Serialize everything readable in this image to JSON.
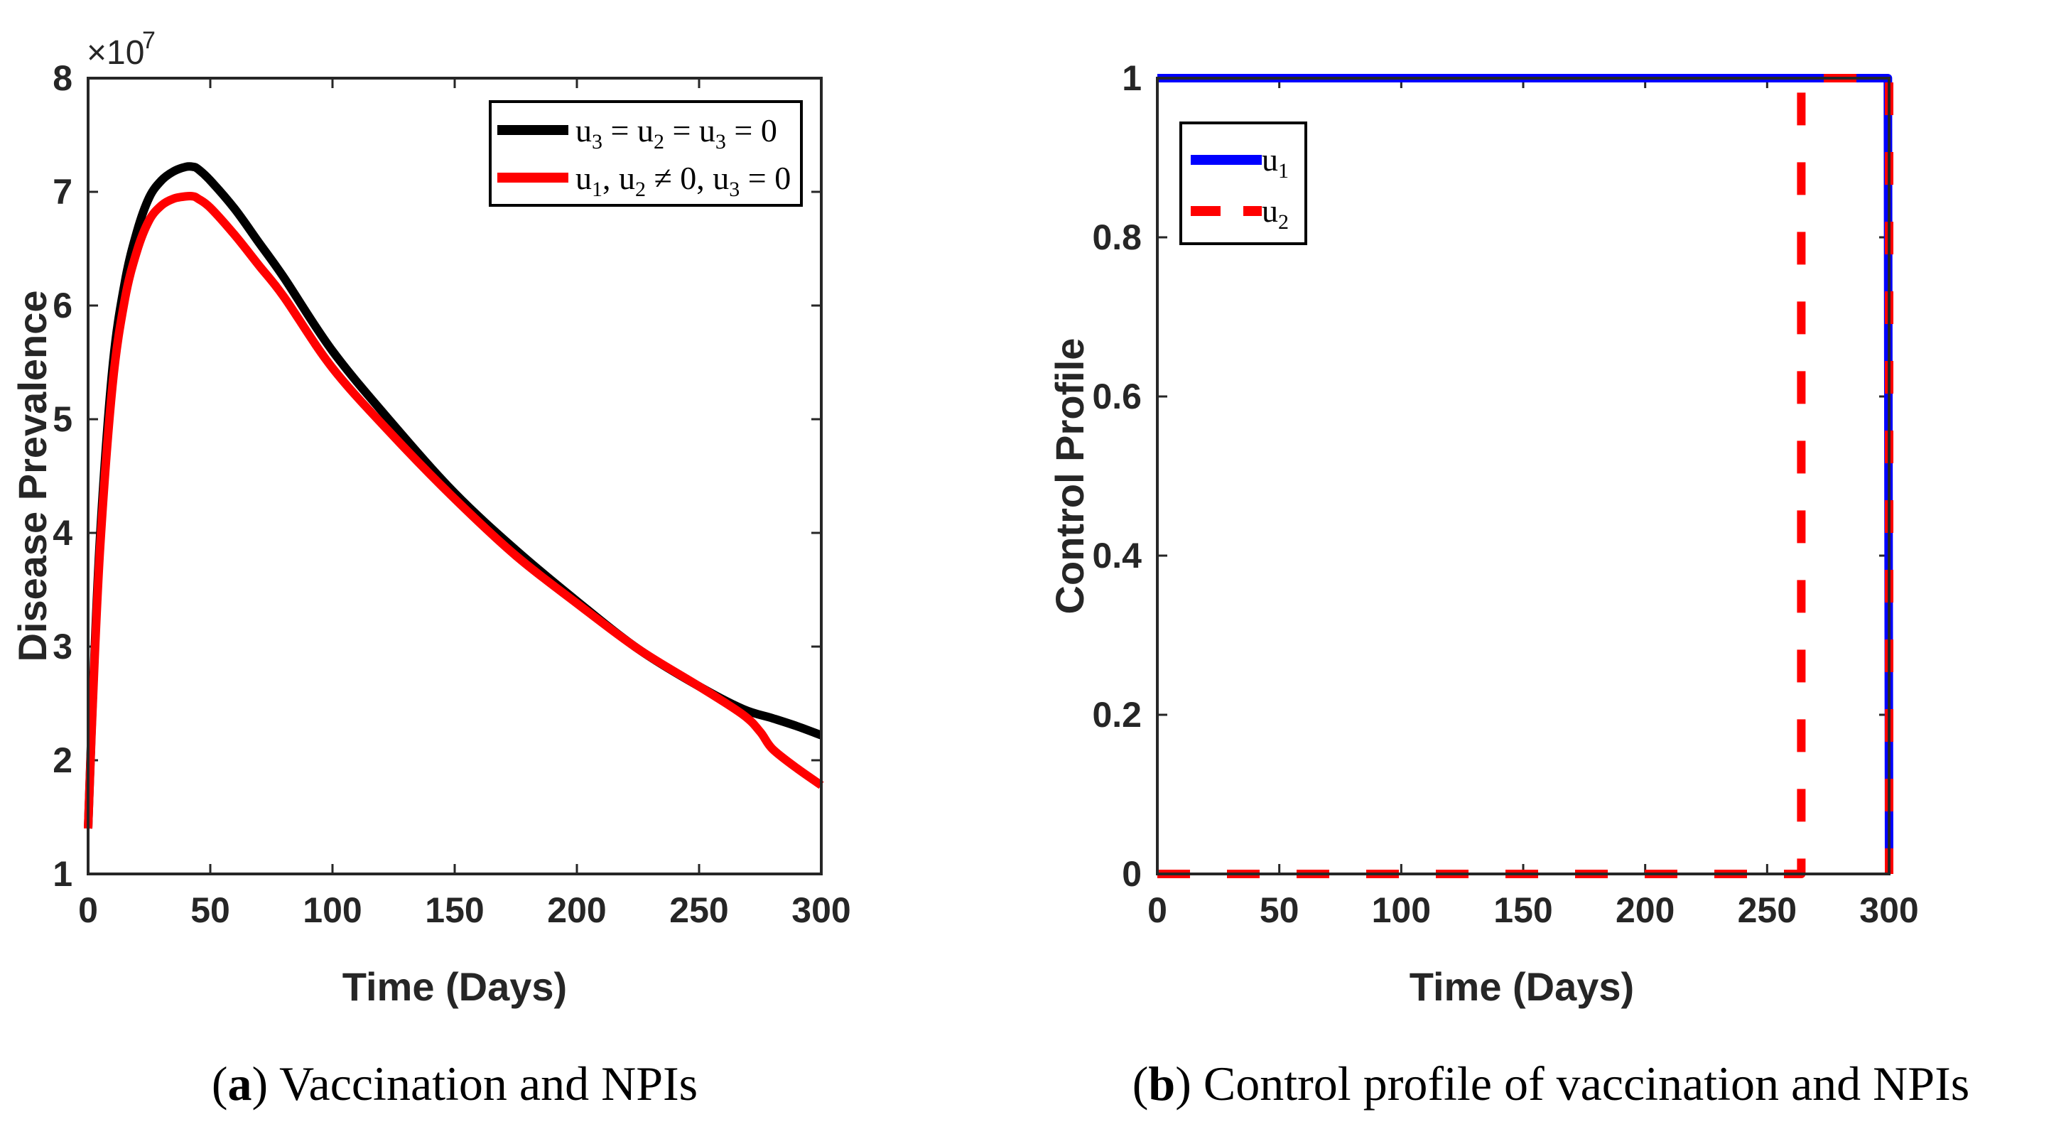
{
  "chart_data": [
    {
      "type": "line",
      "caption_label": "a",
      "caption_text": " Vaccination and NPIs",
      "xlabel": "Time (Days)",
      "ylabel": "Disease Prevalence",
      "exponent_base": "×10",
      "exponent_power": "7",
      "xlim": [
        0,
        300
      ],
      "ylim": [
        1,
        8
      ],
      "xticks": [
        0,
        50,
        100,
        150,
        200,
        250,
        300
      ],
      "yticks": [
        1,
        2,
        3,
        4,
        5,
        6,
        7,
        8
      ],
      "legend_position": "top-right",
      "series": [
        {
          "name": "u3 = u2 = u3 = 0",
          "legend_main": [
            "u",
            "3",
            " = u",
            "2",
            " = u",
            "3",
            " = 0"
          ],
          "color": "#000000",
          "x": [
            0,
            2,
            5,
            10,
            15,
            20,
            25,
            30,
            35,
            40,
            43,
            45,
            50,
            60,
            70,
            80,
            100,
            125,
            150,
            175,
            200,
            225,
            250,
            268,
            280,
            290,
            300
          ],
          "y": [
            1.4,
            2.6,
            4.0,
            5.45,
            6.2,
            6.65,
            6.95,
            7.1,
            7.18,
            7.22,
            7.22,
            7.2,
            7.1,
            6.85,
            6.55,
            6.25,
            5.6,
            4.95,
            4.35,
            3.85,
            3.4,
            2.98,
            2.65,
            2.45,
            2.37,
            2.3,
            2.22
          ]
        },
        {
          "name": "u1, u2 ≠ 0, u3 = 0",
          "legend_main": [
            "u",
            "1",
            ", u",
            "2",
            " ≠ 0, u",
            "3",
            " = 0"
          ],
          "color": "#ff0000",
          "x": [
            0,
            2,
            5,
            10,
            15,
            20,
            25,
            30,
            35,
            40,
            43,
            45,
            50,
            60,
            70,
            80,
            100,
            125,
            150,
            175,
            200,
            225,
            250,
            268,
            275,
            280,
            290,
            300
          ],
          "y": [
            1.4,
            2.55,
            3.9,
            5.3,
            6.05,
            6.48,
            6.75,
            6.88,
            6.94,
            6.96,
            6.96,
            6.94,
            6.86,
            6.62,
            6.35,
            6.08,
            5.45,
            4.85,
            4.3,
            3.8,
            3.38,
            2.98,
            2.65,
            2.4,
            2.25,
            2.1,
            1.93,
            1.78
          ]
        }
      ]
    },
    {
      "type": "line",
      "caption_label": "b",
      "caption_text": " Control profile of vaccination and NPIs",
      "xlabel": "Time (Days)",
      "ylabel": "Control Profile",
      "xlim": [
        0,
        300
      ],
      "ylim": [
        0,
        1
      ],
      "xticks": [
        0,
        50,
        100,
        150,
        200,
        250,
        300
      ],
      "yticks": [
        0,
        0.2,
        0.4,
        0.6,
        0.8,
        1
      ],
      "ytick_labels": [
        "0",
        "0.2",
        "0.4",
        "0.6",
        "0.8",
        "1"
      ],
      "legend_position": "top-left",
      "series": [
        {
          "name": "u1",
          "legend_main": [
            "u",
            "1"
          ],
          "color": "#0000ff",
          "style": "solid",
          "x": [
            0,
            299.5,
            300
          ],
          "y": [
            1,
            1,
            0
          ]
        },
        {
          "name": "u2",
          "legend_main": [
            "u",
            "2"
          ],
          "color": "#ff0000",
          "style": "dashed",
          "x": [
            0,
            264,
            264,
            300,
            300
          ],
          "y": [
            0,
            0,
            1,
            1,
            0
          ]
        }
      ]
    }
  ]
}
